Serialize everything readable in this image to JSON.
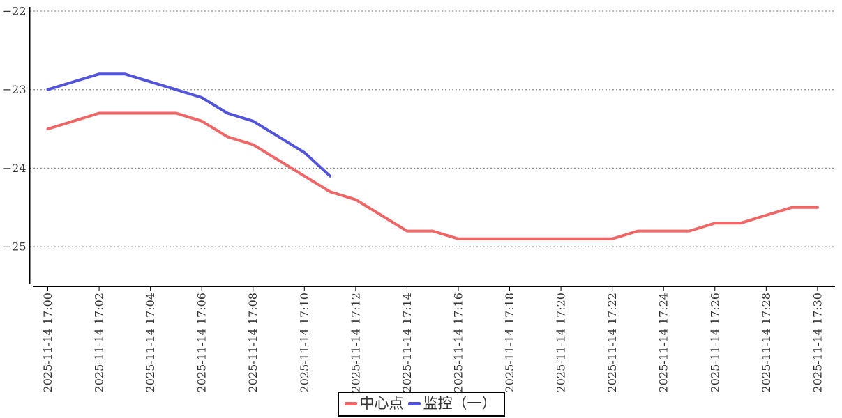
{
  "legend": {
    "items": [
      {
        "label": "中心点",
        "color": "#ee6666"
      },
      {
        "label": "监控（一）",
        "color": "#5254d9"
      }
    ]
  },
  "axes": {
    "y_axis_labels": [
      "−22",
      "−23",
      "−24",
      "−25"
    ],
    "x_axis_labels": [
      "2025-11-14 17:00",
      "2025-11-14 17:02",
      "2025-11-14 17:04",
      "2025-11-14 17:06",
      "2025-11-14 17:08",
      "2025-11-14 17:10",
      "2025-11-14 17:12",
      "2025-11-14 17:14",
      "2025-11-14 17:16",
      "2025-11-14 17:18",
      "2025-11-14 17:20",
      "2025-11-14 17:22",
      "2025-11-14 17:24",
      "2025-11-14 17:26",
      "2025-11-14 17:28",
      "2025-11-14 17:30"
    ]
  },
  "chart_data": {
    "type": "line",
    "title": "",
    "xlabel": "",
    "ylabel": "",
    "grid": true,
    "grid_style": "dashed-horizontal",
    "legend_position": "bottom-center",
    "x_tick_interval_minutes": 2,
    "y_ticks": [
      -22,
      -23,
      -24,
      -25
    ],
    "ylim": [
      -25.5,
      -21.85
    ],
    "x": [
      "2025-11-14 17:00",
      "2025-11-14 17:01",
      "2025-11-14 17:02",
      "2025-11-14 17:03",
      "2025-11-14 17:04",
      "2025-11-14 17:05",
      "2025-11-14 17:06",
      "2025-11-14 17:07",
      "2025-11-14 17:08",
      "2025-11-14 17:09",
      "2025-11-14 17:10",
      "2025-11-14 17:11",
      "2025-11-14 17:12",
      "2025-11-14 17:13",
      "2025-11-14 17:14",
      "2025-11-14 17:15",
      "2025-11-14 17:16",
      "2025-11-14 17:17",
      "2025-11-14 17:18",
      "2025-11-14 17:19",
      "2025-11-14 17:20",
      "2025-11-14 17:21",
      "2025-11-14 17:22",
      "2025-11-14 17:23",
      "2025-11-14 17:24",
      "2025-11-14 17:25",
      "2025-11-14 17:26",
      "2025-11-14 17:27",
      "2025-11-14 17:28",
      "2025-11-14 17:29",
      "2025-11-14 17:30"
    ],
    "series": [
      {
        "name": "中心点",
        "color": "#ee6666",
        "values": [
          -23.5,
          -23.4,
          -23.3,
          -23.3,
          -23.3,
          -23.3,
          -23.4,
          -23.6,
          -23.7,
          -23.9,
          -24.1,
          -24.3,
          -24.4,
          -24.6,
          -24.8,
          -24.8,
          -24.9,
          -24.9,
          -24.9,
          -24.9,
          -24.9,
          -24.9,
          -24.9,
          -24.8,
          -24.8,
          -24.8,
          -24.7,
          -24.7,
          -24.6,
          -24.5,
          -24.5
        ]
      },
      {
        "name": "监控（一）",
        "color": "#5254d9",
        "values": [
          -23.0,
          -22.9,
          -22.8,
          -22.8,
          -22.9,
          -23.0,
          -23.1,
          -23.3,
          -23.4,
          -23.6,
          -23.8,
          -24.1
        ]
      }
    ]
  }
}
